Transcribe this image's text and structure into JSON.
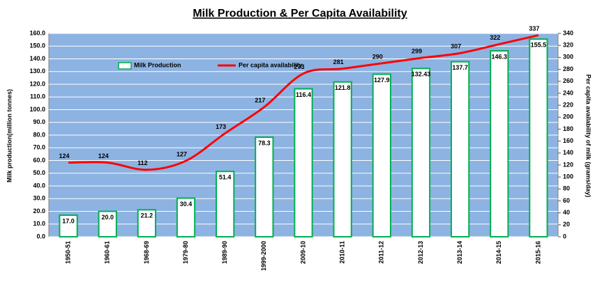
{
  "chart_data": {
    "type": "bar_line",
    "title": "Milk Production & Per Capita Availability",
    "y_label": "Milk production(million tonnes)",
    "y2_label": "Per capita availability of milk (grams/day)",
    "categories": [
      "1950-51",
      "1960-61",
      "1968-69",
      "1979-80",
      "1989-90",
      "1999-2000",
      "2009-10",
      "2010-11",
      "2011-12",
      "2012-13",
      "2013-14",
      "2014-15",
      "2015-16"
    ],
    "series": [
      {
        "name": "Milk Production",
        "type": "bar",
        "color": "#00b050",
        "fill": "#ffffff",
        "values": [
          17.0,
          20.0,
          21.2,
          30.4,
          51.4,
          78.3,
          116.4,
          121.8,
          127.9,
          132.43,
          137.7,
          146.3,
          155.5
        ],
        "value_labels": [
          "17.0",
          "20.0",
          "21.2",
          "30.4",
          "51.4",
          "78.3",
          "116.4",
          "121.8",
          "127.9",
          "132.43",
          "137.7",
          "146.3",
          "155.5"
        ]
      },
      {
        "name": "Per capita availability",
        "type": "line",
        "axis": "y2",
        "color": "#ff0000",
        "values": [
          124,
          124,
          112,
          127,
          173,
          217,
          273,
          281,
          290,
          299,
          307,
          322,
          337
        ]
      }
    ],
    "ylim": [
      0,
      160
    ],
    "yticks": [
      {
        "value": 0,
        "label": "0.0"
      },
      {
        "value": 10,
        "label": "10.0"
      },
      {
        "value": 20,
        "label": "20.0"
      },
      {
        "value": 30,
        "label": "30.0"
      },
      {
        "value": 40,
        "label": "40.0"
      },
      {
        "value": 50,
        "label": "50.0"
      },
      {
        "value": 60,
        "label": "60.0"
      },
      {
        "value": 70,
        "label": "70.0"
      },
      {
        "value": 80,
        "label": "80.0"
      },
      {
        "value": 90,
        "label": "90.0"
      },
      {
        "value": 100,
        "label": "100.0"
      },
      {
        "value": 110,
        "label": "110.0"
      },
      {
        "value": 120,
        "label": "120.0"
      },
      {
        "value": 130,
        "label": "130.0"
      },
      {
        "value": 140,
        "label": "140.0"
      },
      {
        "value": 150,
        "label": "150.0"
      },
      {
        "value": 160,
        "label": "160.0"
      }
    ],
    "y2lim": [
      0,
      340
    ],
    "y2ticks": [
      0,
      20,
      40,
      60,
      80,
      100,
      120,
      140,
      160,
      180,
      200,
      220,
      240,
      260,
      280,
      300,
      320,
      340
    ],
    "grid": true,
    "plot_background": "#8db3e2",
    "legend": "upper left"
  }
}
